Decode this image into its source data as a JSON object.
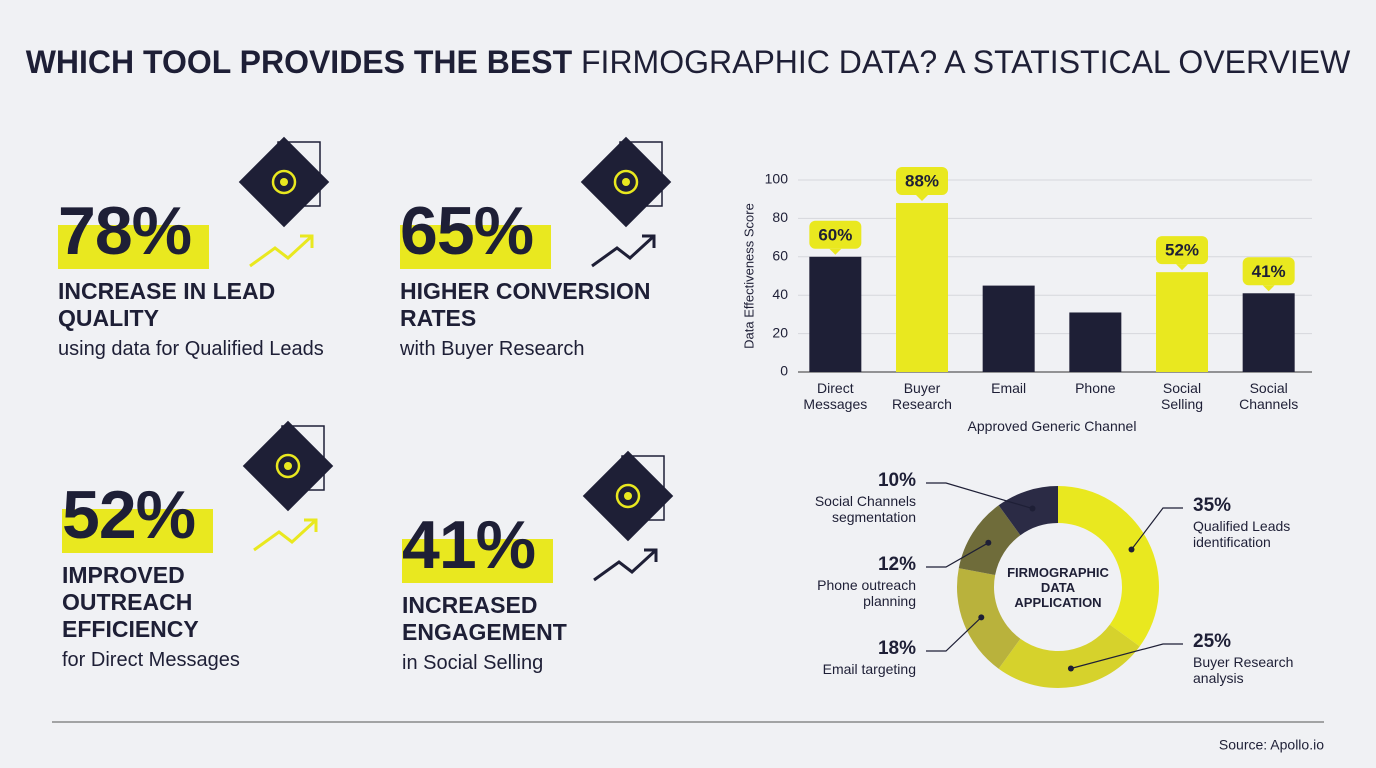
{
  "title_bold": "WHICH TOOL PROVIDES THE BEST",
  "title_rest": "FIRMOGRAPHIC DATA? A STATISTICAL OVERVIEW",
  "stats": [
    {
      "figure": "78%",
      "headline": "INCREASE IN LEAD QUALITY",
      "detail": "using data for Qualified Leads"
    },
    {
      "figure": "65%",
      "headline": "HIGHER CONVERSION RATES",
      "detail": "with Buyer Research"
    },
    {
      "figure": "52%",
      "headline": "IMPROVED OUTREACH EFFICIENCY",
      "detail": "for Direct Messages"
    },
    {
      "figure": "41%",
      "headline": "INCREASED ENGAGEMENT",
      "detail": "in Social Selling"
    }
  ],
  "chart_data": [
    {
      "type": "bar",
      "ylabel": "Data Effectiveness Score",
      "xlabel": "Approved Generic Channel",
      "categories": [
        "Direct Messages",
        "Buyer Research",
        "Email",
        "Phone",
        "Social Selling",
        "Social Channels"
      ],
      "values": [
        60,
        88,
        45,
        31,
        52,
        41
      ],
      "value_labels": [
        "60%",
        "88%",
        null,
        null,
        "52%",
        "41%"
      ],
      "colors": [
        "#1e1f36",
        "#e9e81f",
        "#1e1f36",
        "#1e1f36",
        "#e9e81f",
        "#1e1f36"
      ],
      "ylim": [
        0,
        100
      ],
      "yticks": [
        0,
        20,
        40,
        60,
        80,
        100
      ],
      "grid": true
    },
    {
      "type": "donut",
      "title": "FIRMOGRAPHIC DATA APPLICATION",
      "categories": [
        "Qualified Leads identification",
        "Buyer Research analysis",
        "Email targeting",
        "Phone outreach planning",
        "Social Channels segmentation"
      ],
      "values": [
        35,
        25,
        18,
        12,
        10
      ],
      "value_labels": [
        "35%",
        "25%",
        "18%",
        "12%",
        "10%"
      ],
      "colors": [
        "#e9e81f",
        "#d6d22c",
        "#b9b23c",
        "#6f6c3a",
        "#2b2b45"
      ]
    }
  ],
  "source": "Source: Apollo.io"
}
